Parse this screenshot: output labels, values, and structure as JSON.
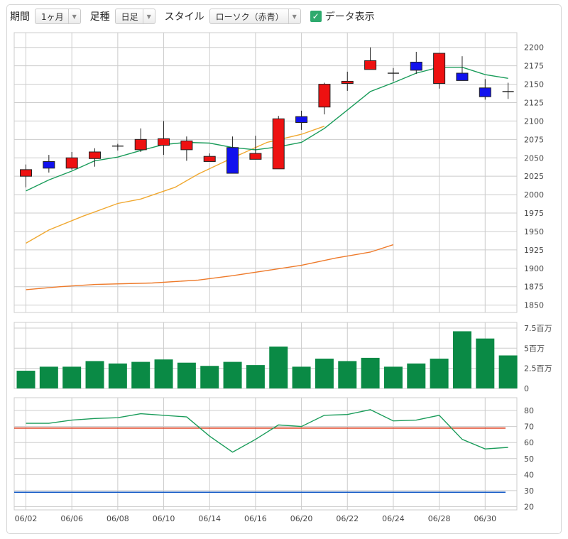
{
  "toolbar": {
    "period_label": "期間",
    "period_value": "1ヶ月",
    "candle_label": "足種",
    "candle_value": "日足",
    "style_label": "スタイル",
    "style_value": "ローソク（赤青）",
    "data_label": "データ表示",
    "data_checked": true
  },
  "colors": {
    "up": "#ee1111",
    "down": "#1111ee",
    "volume": "#0a8a45",
    "ma_short": "#1a9c5a",
    "ma_mid": "#f0a830",
    "ma_long": "#ee7a2a",
    "rsi": "#1a9c5a",
    "rsi_high": "#dd3311",
    "rsi_low": "#1a5fc8",
    "grid": "#cccccc"
  },
  "chart_data": [
    {
      "type": "candlestick",
      "ylim": [
        1840,
        2220
      ],
      "y_ticks": [
        "2200",
        "2175",
        "2150",
        "2125",
        "2100",
        "2075",
        "2050",
        "2025",
        "2000",
        "1975",
        "1950",
        "1925",
        "1900",
        "1875",
        "1850"
      ],
      "candles": [
        {
          "o": 2025,
          "c": 2034,
          "h": 2041,
          "l": 2010
        },
        {
          "o": 2045,
          "c": 2036,
          "h": 2054,
          "l": 2030
        },
        {
          "o": 2036,
          "c": 2050,
          "h": 2058,
          "l": 2034
        },
        {
          "o": 2049,
          "c": 2058,
          "h": 2063,
          "l": 2038
        },
        {
          "o": 2066,
          "c": 2066,
          "h": 2069,
          "l": 2060
        },
        {
          "o": 2061,
          "c": 2075,
          "h": 2090,
          "l": 2058
        },
        {
          "o": 2067,
          "c": 2076,
          "h": 2100,
          "l": 2054
        },
        {
          "o": 2061,
          "c": 2073,
          "h": 2079,
          "l": 2046
        },
        {
          "o": 2045,
          "c": 2052,
          "h": 2056,
          "l": 2045
        },
        {
          "o": 2064,
          "c": 2029,
          "h": 2079,
          "l": 2029
        },
        {
          "o": 2048,
          "c": 2056,
          "h": 2080,
          "l": 2048
        },
        {
          "o": 2035,
          "c": 2103,
          "h": 2107,
          "l": 2035
        },
        {
          "o": 2106,
          "c": 2098,
          "h": 2114,
          "l": 2088
        },
        {
          "o": 2119,
          "c": 2150,
          "h": 2152,
          "l": 2109
        },
        {
          "o": 2151,
          "c": 2154,
          "h": 2167,
          "l": 2141
        },
        {
          "o": 2170,
          "c": 2182,
          "h": 2200,
          "l": 2170
        },
        {
          "o": 2165,
          "c": 2165,
          "h": 2172,
          "l": 2154
        },
        {
          "o": 2180,
          "c": 2169,
          "h": 2194,
          "l": 2164
        },
        {
          "o": 2151,
          "c": 2192,
          "h": 2192,
          "l": 2144
        },
        {
          "o": 2165,
          "c": 2155,
          "h": 2188,
          "l": 2155
        },
        {
          "o": 2145,
          "c": 2133,
          "h": 2157,
          "l": 2129
        },
        {
          "o": 2140,
          "c": 2140,
          "h": 2152,
          "l": 2130
        }
      ],
      "ma_short": [
        2005,
        2020,
        2032,
        2046,
        2051,
        2060,
        2068,
        2071,
        2070,
        2064,
        2061,
        2065,
        2071,
        2090,
        2115,
        2140,
        2152,
        2165,
        2173,
        2173,
        2163,
        2158
      ],
      "ma_mid_points": [
        [
          0,
          1934
        ],
        [
          2,
          1952
        ],
        [
          5,
          1971
        ],
        [
          8,
          1988
        ],
        [
          10,
          1994
        ],
        [
          13,
          2010
        ],
        [
          15,
          2028
        ],
        [
          18,
          2050
        ],
        [
          21,
          2071
        ],
        [
          24,
          2082
        ],
        [
          26,
          2093
        ]
      ],
      "ma_long_points": [
        [
          0,
          1871
        ],
        [
          3,
          1875
        ],
        [
          6,
          1878
        ],
        [
          11,
          1880
        ],
        [
          15,
          1884
        ],
        [
          18,
          1890
        ],
        [
          21,
          1897
        ],
        [
          24,
          1904
        ],
        [
          27,
          1914
        ],
        [
          30,
          1922
        ],
        [
          32,
          1932
        ]
      ]
    },
    {
      "type": "bar",
      "ylabel_ticks": [
        "7.5百万",
        "5百万",
        "2.5百万",
        "0"
      ],
      "ylim": [
        0,
        8200000
      ],
      "values": [
        2200000,
        2700000,
        2700000,
        3400000,
        3100000,
        3300000,
        3600000,
        3200000,
        2800000,
        3300000,
        2900000,
        5200000,
        2700000,
        3700000,
        3400000,
        3800000,
        2700000,
        3100000,
        3700000,
        7100000,
        6200000,
        4100000
      ]
    },
    {
      "type": "line",
      "ylim": [
        18,
        88
      ],
      "y_ticks": [
        "80",
        "70",
        "60",
        "50",
        "40",
        "30",
        "20"
      ],
      "values": [
        72,
        72,
        74,
        75,
        75.5,
        78,
        77,
        76,
        64,
        54,
        62,
        71,
        70,
        77,
        77.5,
        80.5,
        73.5,
        74,
        77,
        62,
        56,
        57
      ],
      "upper_line": 69,
      "lower_line": 29
    }
  ],
  "x_labels": [
    "06/02",
    "06/06",
    "06/08",
    "06/10",
    "06/14",
    "06/16",
    "06/20",
    "06/22",
    "06/24",
    "06/28",
    "06/30"
  ]
}
